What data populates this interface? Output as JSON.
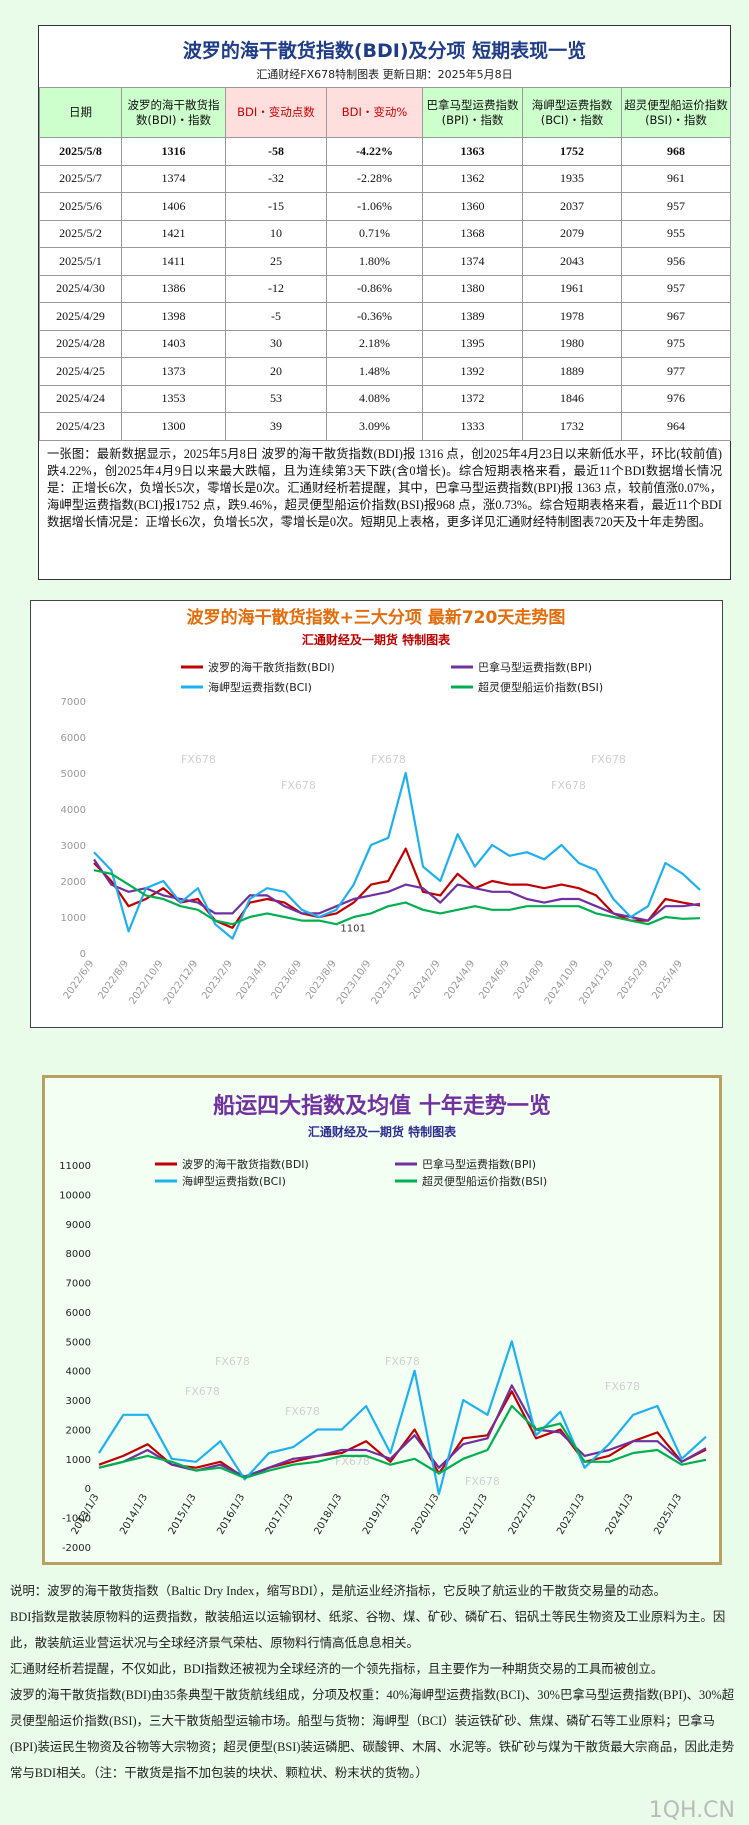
{
  "header": {
    "title": "波罗的海干散货指数(BDI)及分项  短期表现一览",
    "subtitle": "汇通财经FX678特制图表    更新日期：2025年5月8日"
  },
  "table": {
    "columns": [
      "日期",
      "波罗的海干散货指数(BDI)・指数",
      "BDI・变动点数",
      "BDI・变动%",
      "巴拿马型运费指数(BPI)・指数",
      "海岬型运费指数(BCI)・指数",
      "超灵便型船运价指数(BSI)・指数"
    ],
    "rows": [
      [
        "2025/5/8",
        "1316",
        "-58",
        "-4.22%",
        "1363",
        "1752",
        "968"
      ],
      [
        "2025/5/7",
        "1374",
        "-32",
        "-2.28%",
        "1362",
        "1935",
        "961"
      ],
      [
        "2025/5/6",
        "1406",
        "-15",
        "-1.06%",
        "1360",
        "2037",
        "957"
      ],
      [
        "2025/5/2",
        "1421",
        "10",
        "0.71%",
        "1368",
        "2079",
        "955"
      ],
      [
        "2025/5/1",
        "1411",
        "25",
        "1.80%",
        "1374",
        "2043",
        "956"
      ],
      [
        "2025/4/30",
        "1386",
        "-12",
        "-0.86%",
        "1380",
        "1961",
        "957"
      ],
      [
        "2025/4/29",
        "1398",
        "-5",
        "-0.36%",
        "1389",
        "1978",
        "967"
      ],
      [
        "2025/4/28",
        "1403",
        "30",
        "2.18%",
        "1395",
        "1980",
        "975"
      ],
      [
        "2025/4/25",
        "1373",
        "20",
        "1.48%",
        "1392",
        "1889",
        "977"
      ],
      [
        "2025/4/24",
        "1353",
        "53",
        "4.08%",
        "1372",
        "1846",
        "976"
      ],
      [
        "2025/4/23",
        "1300",
        "39",
        "3.09%",
        "1333",
        "1732",
        "964"
      ]
    ]
  },
  "summary": "一张图：最新数据显示，2025年5月8日 波罗的海干散货指数(BDI)报 1316 点，创2025年4月23日以来新低水平，环比(较前值)跌4.22%，创2025年4月9日以来最大跌幅，且为连续第3天下跌(含0增长)。综合短期表格来看，最近11个BDI数据增长情况是：正增长6次，负增长5次，零增长是0次。汇通财经析若提醒，其中，巴拿马型运费指数(BPI)报 1363 点，较前值涨0.07%，海岬型运费指数(BCI)报1752 点，跌9.46%，超灵便型船运价指数(BSI)报968 点，涨0.73%。综合短期表格来看，最近11个BDI数据增长情况是：正增长6次，负增长5次，零增长是0次。短期见上表格，更多详见汇通财经特制图表720天及十年走势图。",
  "chart_data": [
    {
      "type": "line",
      "title": "波罗的海干散货指数+三大分项  最新720天走势图",
      "subtitle": "汇通财经及一期货  特制图表",
      "watermark": "FX678",
      "annotation": "1101",
      "legend": "top",
      "grid": false,
      "categories": [
        "2022/6/9",
        null,
        "2022/8/9",
        null,
        "2022/10/9",
        null,
        "2022/12/9",
        null,
        "2023/2/9",
        null,
        "2023/4/9",
        null,
        "2023/6/9",
        null,
        "2023/8/9",
        null,
        "2023/10/9",
        null,
        "2023/12/9",
        null,
        "2024/2/9",
        null,
        "2024/4/9",
        null,
        "2024/6/9",
        null,
        "2024/8/9",
        null,
        "2024/10/9",
        null,
        "2024/12/9",
        null,
        "2025/2/9",
        null,
        "2025/4/9",
        null
      ],
      "ylim": [
        0,
        7000
      ],
      "yticks": [
        0,
        1000,
        2000,
        3000,
        4000,
        5000,
        6000,
        7000
      ],
      "series": [
        {
          "name": "波罗的海干散货指数(BDI)",
          "color": "#c00000",
          "values": [
            2500,
            2000,
            1300,
            1500,
            1800,
            1400,
            1500,
            900,
            700,
            1400,
            1500,
            1400,
            1100,
            1000,
            1100,
            1400,
            1900,
            2000,
            2900,
            1700,
            1600,
            2200,
            1800,
            2000,
            1900,
            1900,
            1800,
            1900,
            1800,
            1600,
            1100,
            900,
            900,
            1500,
            1400,
            1316
          ]
        },
        {
          "name": "巴拿马型运费指数(BPI)",
          "color": "#7030a0",
          "values": [
            2600,
            1900,
            1700,
            1800,
            1600,
            1500,
            1400,
            1100,
            1100,
            1600,
            1600,
            1300,
            1100,
            1100,
            1300,
            1500,
            1600,
            1700,
            1900,
            1800,
            1400,
            1900,
            1800,
            1700,
            1700,
            1500,
            1400,
            1500,
            1500,
            1300,
            1100,
            1000,
            900,
            1300,
            1300,
            1363
          ]
        },
        {
          "name": "海岬型运费指数(BCI)",
          "color": "#1fb0f0",
          "values": [
            2800,
            2300,
            600,
            1800,
            2000,
            1400,
            1800,
            800,
            400,
            1500,
            1800,
            1700,
            1200,
            1000,
            1200,
            1900,
            3000,
            3200,
            5000,
            2400,
            2000,
            3300,
            2400,
            3000,
            2700,
            2800,
            2600,
            3000,
            2500,
            2300,
            1500,
            1000,
            1300,
            2500,
            2200,
            1752
          ]
        },
        {
          "name": "超灵便型船运价指数(BSI)",
          "color": "#00b050",
          "values": [
            2300,
            2200,
            1900,
            1600,
            1500,
            1300,
            1200,
            900,
            800,
            1000,
            1100,
            1000,
            900,
            900,
            800,
            1000,
            1100,
            1300,
            1400,
            1200,
            1100,
            1200,
            1300,
            1200,
            1200,
            1300,
            1300,
            1300,
            1300,
            1100,
            1000,
            900,
            800,
            1000,
            950,
            968
          ]
        }
      ]
    },
    {
      "type": "line",
      "title": "船运四大指数及均值 十年走势一览",
      "subtitle": "汇通财经及一期货 特制图表",
      "watermark": "FX678",
      "legend": "top",
      "grid": false,
      "categories": [
        "2013/1/3",
        null,
        "2014/1/3",
        null,
        "2015/1/3",
        null,
        "2016/1/3",
        null,
        "2017/1/3",
        null,
        "2018/1/3",
        null,
        "2019/1/3",
        null,
        "2020/1/3",
        null,
        "2021/1/3",
        null,
        "2022/1/3",
        null,
        "2023/1/3",
        null,
        "2024/1/3",
        null,
        "2025/1/3",
        null
      ],
      "ylim": [
        -2000,
        11000
      ],
      "yticks": [
        -2000,
        -1000,
        0,
        1000,
        2000,
        3000,
        4000,
        5000,
        6000,
        7000,
        8000,
        9000,
        10000,
        11000
      ],
      "series": [
        {
          "name": "波罗的海干散货指数(BDI)",
          "color": "#c00000",
          "values": [
            800,
            1100,
            1500,
            800,
            700,
            900,
            350,
            700,
            900,
            1100,
            1200,
            1600,
            900,
            2000,
            500,
            1700,
            1800,
            3300,
            1700,
            2000,
            900,
            1100,
            1600,
            1900,
            900,
            1316
          ]
        },
        {
          "name": "巴拿马型运费指数(BPI)",
          "color": "#7030a0",
          "values": [
            700,
            900,
            1300,
            800,
            600,
            800,
            400,
            700,
            1000,
            1100,
            1300,
            1300,
            1000,
            1800,
            700,
            1500,
            1700,
            3500,
            2000,
            1900,
            1100,
            1300,
            1600,
            1600,
            900,
            1363
          ]
        },
        {
          "name": "海岬型运费指数(BCI)",
          "color": "#1fb0f0",
          "values": [
            1200,
            2500,
            2500,
            1000,
            900,
            1600,
            300,
            1200,
            1400,
            2000,
            2000,
            2800,
            1200,
            4000,
            -200,
            3000,
            2500,
            5000,
            1800,
            2600,
            700,
            1500,
            2500,
            2800,
            1000,
            1752
          ]
        },
        {
          "name": "超灵便型船运价指数(BSI)",
          "color": "#00b050",
          "values": [
            700,
            900,
            1100,
            900,
            600,
            700,
            350,
            600,
            800,
            900,
            1100,
            1100,
            800,
            1000,
            500,
            1000,
            1300,
            2800,
            2000,
            2200,
            900,
            900,
            1200,
            1300,
            800,
            968
          ]
        }
      ]
    }
  ],
  "notes": [
    "说明：波罗的海干散货指数（Baltic Dry Index，缩写BDI），是航运业经济指标，它反映了航运业的干散货交易量的动态。",
    "BDI指数是散装原物料的运费指数，散装船运以运输钢材、纸浆、谷物、煤、矿砂、磷矿石、铝矾土等民生物资及工业原料为主。因此，散装航运业营运状况与全球经济景气荣枯、原物料行情高低息息相关。",
    "汇通财经析若提醒，不仅如此，BDI指数还被视为全球经济的一个领先指标，且主要作为一种期货交易的工具而被创立。",
    "波罗的海干散货指数(BDI)由35条典型干散货航线组成，分项及权重：40%海岬型运费指数(BCI)、30%巴拿马型运费指数(BPI)、30%超灵便型船运价指数(BSI)，三大干散货船型运输市场。船型与货物：海岬型（BCI）装运铁矿砂、焦煤、磷矿石等工业原料；巴拿马(BPI)装运民生物资及谷物等大宗物资；超灵便型(BSI)装运磷肥、碳酸钾、木屑、水泥等。铁矿砂与煤为干散货最大宗商品，因此走势常与BDI相关。（注：干散货是指不加包装的块状、颗粒状、粉末状的货物。）"
  ],
  "footer": "1QH.CN"
}
